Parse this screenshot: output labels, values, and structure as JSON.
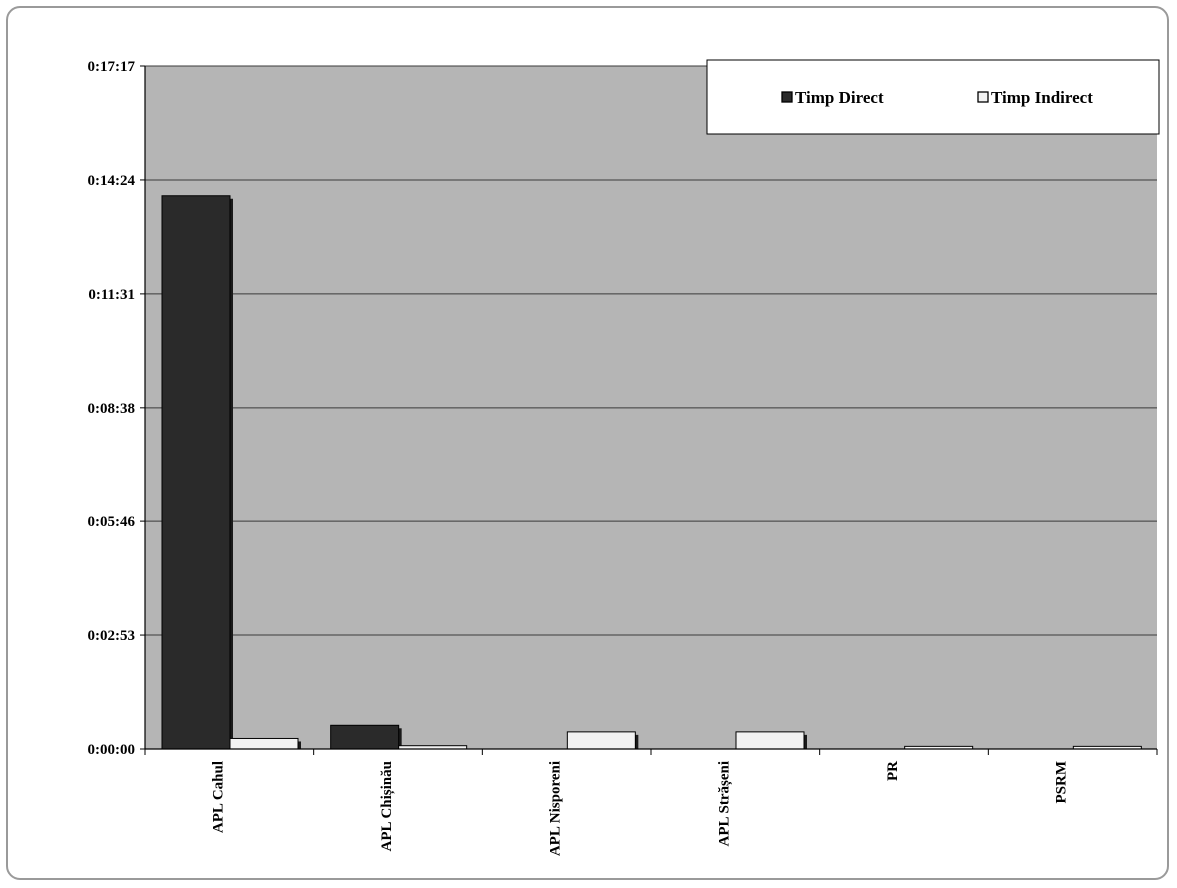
{
  "chart_data": {
    "type": "bar",
    "categories": [
      "APL Cahul",
      "APL Chișinău",
      "APL Nisporeni",
      "APL Strășeni",
      "PR",
      "PSRM"
    ],
    "series": [
      {
        "name": "Timp Direct",
        "values": [
          840,
          36,
          0,
          0,
          0,
          0
        ],
        "color": "#2a2a2a"
      },
      {
        "name": "Timp Indirect",
        "values": [
          16,
          5,
          26,
          26,
          4,
          4
        ],
        "color": "#f2f2f2"
      }
    ],
    "value_unit": "seconds",
    "ylim": [
      0,
      1037
    ],
    "yticks": [
      {
        "value": 0,
        "label": "0:00:00"
      },
      {
        "value": 173,
        "label": "0:02:53"
      },
      {
        "value": 346,
        "label": "0:05:46"
      },
      {
        "value": 518,
        "label": "0:08:38"
      },
      {
        "value": 691,
        "label": "0:11:31"
      },
      {
        "value": 864,
        "label": "0:14:24"
      },
      {
        "value": 1037,
        "label": "0:17:17"
      }
    ],
    "grid": true,
    "legend_position": "top-right",
    "plot_background": "#b5b5b5"
  }
}
